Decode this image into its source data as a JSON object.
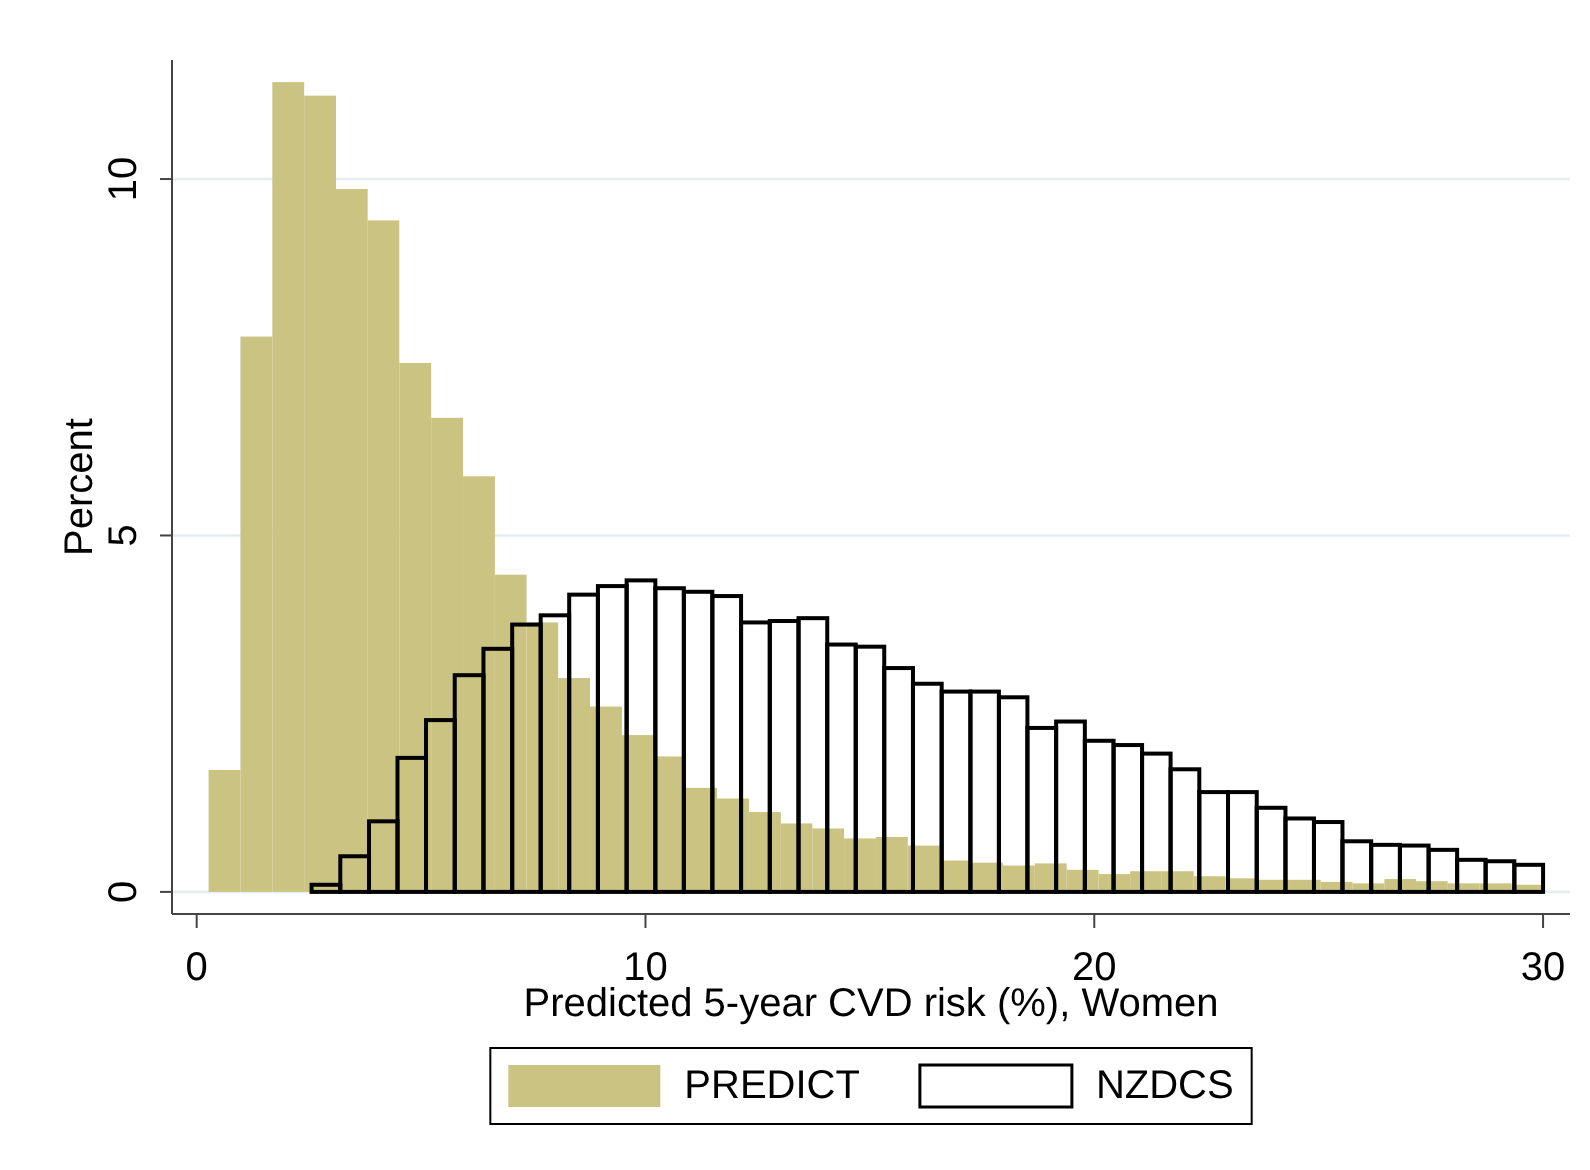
{
  "chart_data": {
    "type": "bar",
    "xlabel": "Predicted 5-year CVD risk (%), Women",
    "ylabel": "Percent",
    "xlim": [
      -0.55,
      30.6
    ],
    "ylim": [
      -0.31,
      11.67
    ],
    "xticks": [
      0,
      10,
      20,
      30
    ],
    "yticks": [
      0,
      5,
      10
    ],
    "grid": "y",
    "legend": "bottom",
    "series": [
      {
        "name": "PREDICT",
        "color": "#cbc382",
        "x": [
          0.62,
          1.33,
          2.04,
          2.75,
          3.46,
          4.16,
          4.87,
          5.58,
          6.29,
          7.0,
          7.7,
          8.41,
          9.12,
          9.83,
          10.54,
          11.24,
          11.95,
          12.66,
          13.37,
          14.07,
          14.78,
          15.49,
          16.2,
          16.91,
          17.61,
          18.32,
          19.03,
          19.74,
          20.45,
          21.15,
          21.86,
          22.57,
          23.28,
          23.99,
          24.69,
          25.4,
          26.11,
          26.82,
          27.52,
          28.23,
          28.94,
          29.65
        ],
        "values": [
          1.71,
          7.79,
          11.36,
          11.17,
          9.86,
          9.42,
          7.42,
          6.65,
          5.83,
          4.45,
          3.78,
          3.0,
          2.6,
          2.2,
          1.9,
          1.46,
          1.31,
          1.12,
          0.96,
          0.89,
          0.75,
          0.77,
          0.65,
          0.44,
          0.41,
          0.37,
          0.4,
          0.31,
          0.25,
          0.29,
          0.29,
          0.22,
          0.19,
          0.17,
          0.17,
          0.14,
          0.12,
          0.18,
          0.15,
          0.12,
          0.12,
          0.1
        ]
      },
      {
        "name": "NZDCS",
        "color": "#000000",
        "x": [
          2.88,
          3.52,
          4.16,
          4.79,
          5.43,
          6.07,
          6.71,
          7.35,
          7.98,
          8.62,
          9.26,
          9.9,
          10.54,
          11.17,
          11.81,
          12.45,
          13.09,
          13.73,
          14.37,
          15.0,
          15.64,
          16.28,
          16.92,
          17.56,
          18.19,
          18.83,
          19.47,
          20.11,
          20.75,
          21.38,
          22.02,
          22.66,
          23.3,
          23.94,
          24.58,
          25.21,
          25.85,
          26.49,
          27.13,
          27.77,
          28.4,
          29.04,
          29.68
        ],
        "values": [
          0.1,
          0.5,
          0.99,
          1.88,
          2.41,
          3.04,
          3.41,
          3.75,
          3.88,
          4.17,
          4.29,
          4.37,
          4.26,
          4.21,
          4.15,
          3.78,
          3.8,
          3.84,
          3.47,
          3.44,
          3.14,
          2.92,
          2.81,
          2.81,
          2.73,
          2.3,
          2.39,
          2.12,
          2.06,
          1.94,
          1.72,
          1.4,
          1.4,
          1.18,
          1.03,
          0.98,
          0.71,
          0.66,
          0.65,
          0.59,
          0.45,
          0.43,
          0.38
        ]
      }
    ]
  }
}
